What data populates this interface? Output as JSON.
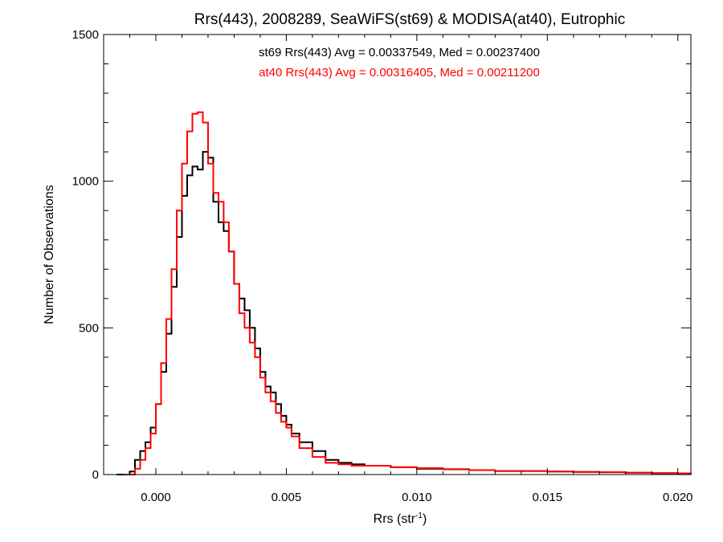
{
  "chart_data": {
    "type": "line",
    "title": "Rrs(443), 2008289, SeaWiFS(st69) & MODISA(at40), Eutrophic",
    "xlabel": "Rrs (str",
    "xlabel_sup": "-1",
    "xlabel_suffix": ")",
    "ylabel": "Number of Observations",
    "xlim": [
      -0.002,
      0.0205
    ],
    "ylim": [
      0,
      1500
    ],
    "xticks": [
      0.0,
      0.005,
      0.01,
      0.015,
      0.02
    ],
    "xtick_labels": [
      "0.000",
      "0.005",
      "0.010",
      "0.015",
      "0.020"
    ],
    "yticks": [
      0,
      500,
      1000,
      1500
    ],
    "ytick_labels": [
      "0",
      "500",
      "1000",
      "1500"
    ],
    "grid": false,
    "annotations": [
      {
        "text": "st69 Rrs(443) Avg = 0.00337549, Med = 0.00237400",
        "color": "#000000"
      },
      {
        "text": "at40 Rrs(443) Avg = 0.00316405, Med = 0.00211200",
        "color": "#ff0000"
      }
    ],
    "series": [
      {
        "color": "#000000",
        "step": true,
        "x": [
          -0.0015,
          -0.001,
          -0.0008,
          -0.0006,
          -0.0004,
          -0.0002,
          0.0,
          0.0002,
          0.0004,
          0.0006,
          0.0008,
          0.001,
          0.0012,
          0.0014,
          0.0016,
          0.0018,
          0.002,
          0.0022,
          0.0024,
          0.0026,
          0.0028,
          0.003,
          0.0032,
          0.0034,
          0.0036,
          0.0038,
          0.004,
          0.0042,
          0.0044,
          0.0046,
          0.0048,
          0.005,
          0.0052,
          0.0055,
          0.006,
          0.0065,
          0.007,
          0.0075,
          0.008,
          0.009,
          0.01,
          0.011,
          0.012,
          0.013,
          0.014,
          0.015,
          0.016,
          0.017,
          0.018,
          0.019,
          0.02,
          0.0205
        ],
        "y": [
          0,
          10,
          50,
          80,
          110,
          160,
          240,
          350,
          480,
          640,
          810,
          950,
          1020,
          1050,
          1040,
          1100,
          1080,
          930,
          860,
          830,
          760,
          650,
          600,
          560,
          500,
          430,
          350,
          300,
          280,
          240,
          200,
          170,
          140,
          110,
          80,
          50,
          40,
          35,
          30,
          25,
          20,
          18,
          15,
          12,
          12,
          10,
          9,
          8,
          6,
          5,
          4,
          0
        ]
      },
      {
        "color": "#ff0000",
        "step": true,
        "x": [
          -0.0012,
          -0.0008,
          -0.0006,
          -0.0004,
          -0.0002,
          0.0,
          0.0002,
          0.0004,
          0.0006,
          0.0008,
          0.001,
          0.0012,
          0.0014,
          0.0016,
          0.0018,
          0.002,
          0.0022,
          0.0024,
          0.0026,
          0.0028,
          0.003,
          0.0032,
          0.0034,
          0.0036,
          0.0038,
          0.004,
          0.0042,
          0.0044,
          0.0046,
          0.0048,
          0.005,
          0.0052,
          0.0055,
          0.006,
          0.0065,
          0.007,
          0.0075,
          0.008,
          0.009,
          0.01,
          0.011,
          0.012,
          0.013,
          0.014,
          0.015,
          0.016,
          0.017,
          0.018,
          0.019,
          0.02,
          0.0205
        ],
        "y": [
          0,
          20,
          50,
          90,
          140,
          240,
          380,
          530,
          700,
          900,
          1060,
          1170,
          1230,
          1235,
          1200,
          1060,
          960,
          930,
          860,
          760,
          650,
          550,
          500,
          450,
          400,
          330,
          280,
          250,
          210,
          180,
          160,
          130,
          90,
          60,
          40,
          35,
          30,
          30,
          25,
          22,
          18,
          15,
          12,
          12,
          10,
          9,
          8,
          6,
          5,
          4,
          0
        ]
      }
    ]
  }
}
